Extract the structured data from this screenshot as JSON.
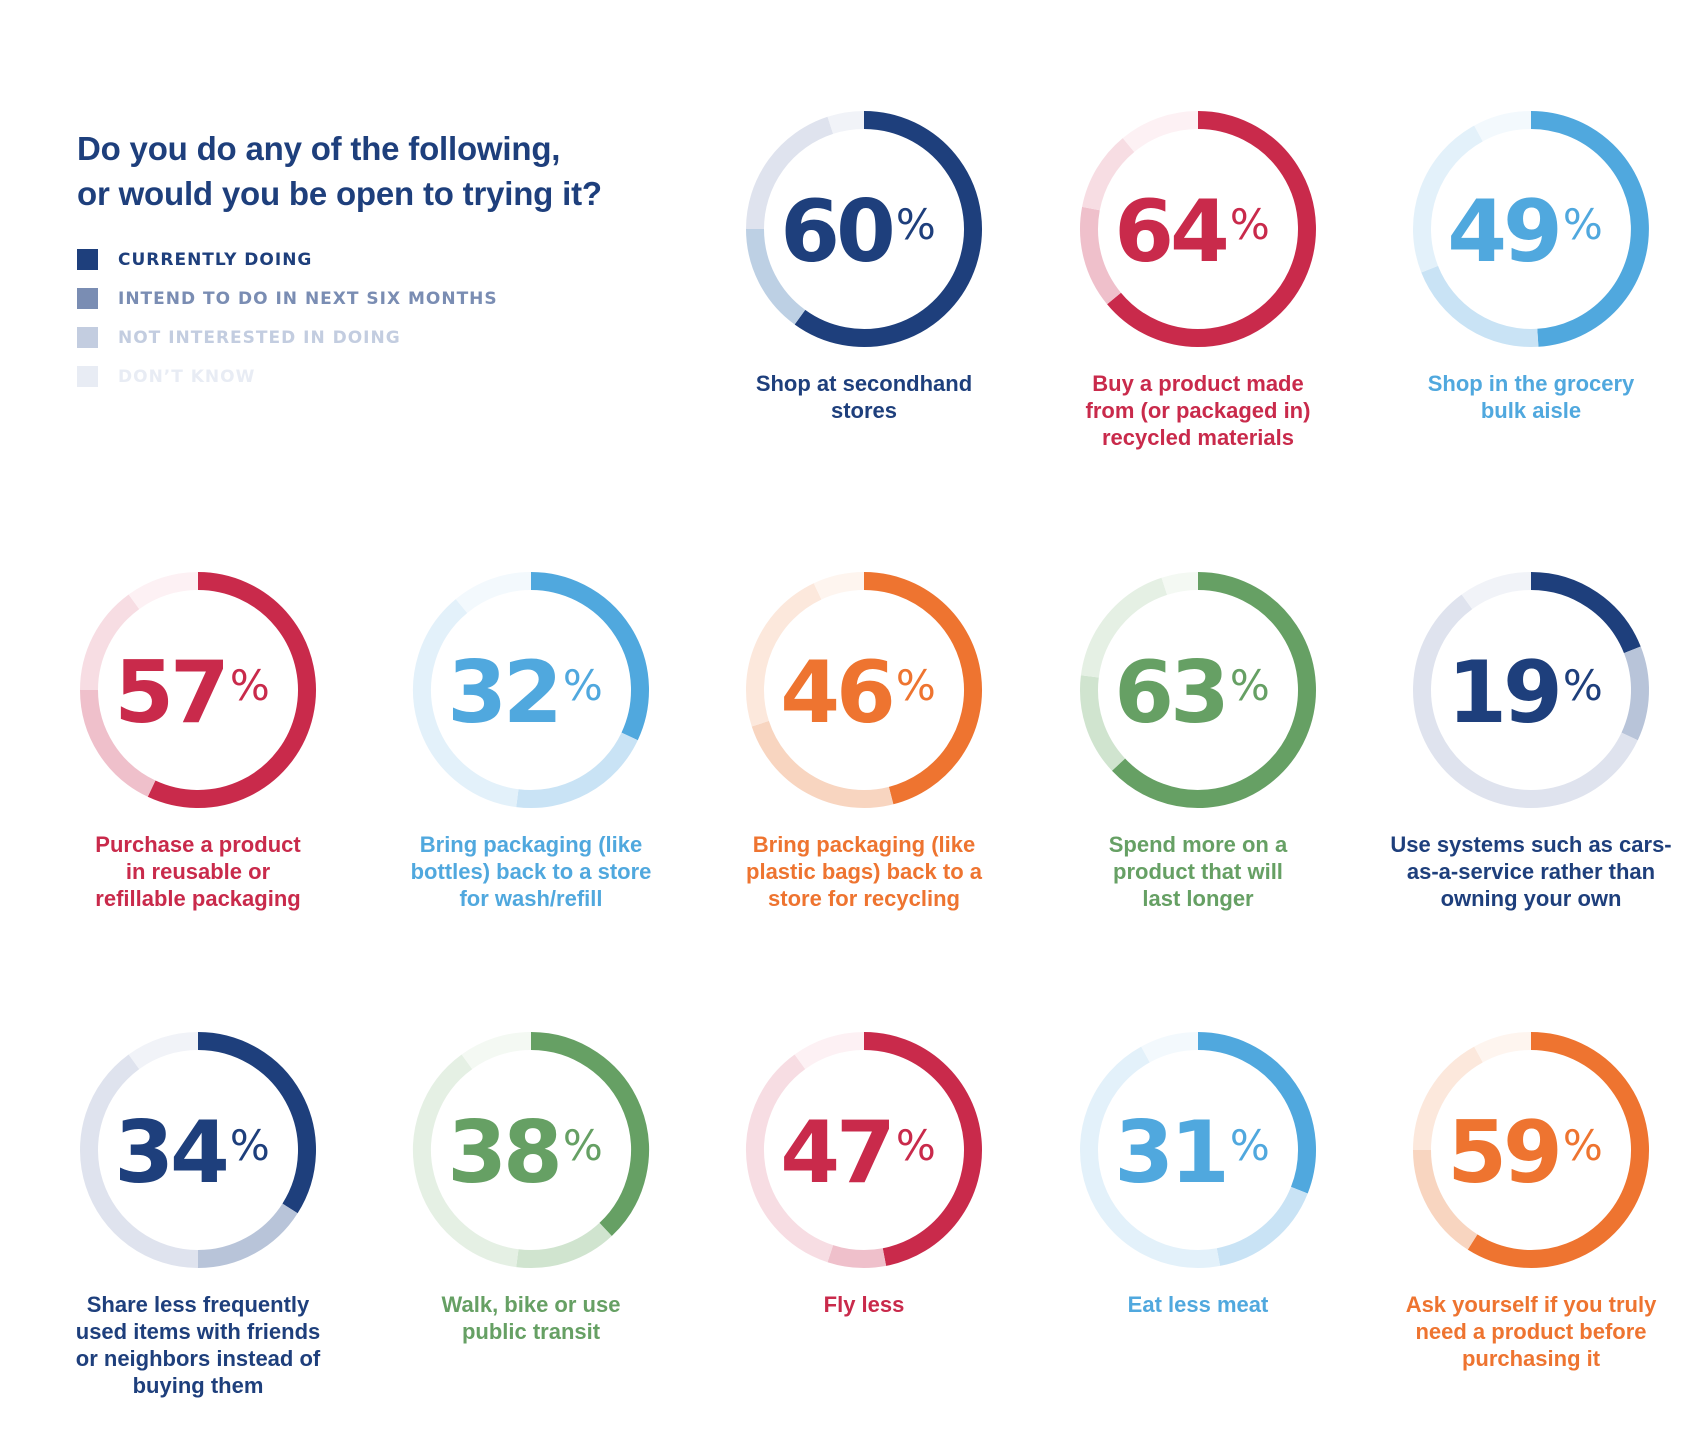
{
  "title_lines": [
    "Do you do any of the following,",
    "or would you be open to trying it?"
  ],
  "legend": [
    {
      "label": "CURRENTLY DOING",
      "color": "#1e3f7c"
    },
    {
      "label": "INTEND TO DO IN NEXT SIX MONTHS",
      "color": "#7a8db3"
    },
    {
      "label": "NOT INTERESTED IN DOING",
      "color": "#c3cde0"
    },
    {
      "label": "DON’T KNOW",
      "color": "#e8ecf4"
    }
  ],
  "chart_data": {
    "type": "pie",
    "subtype": "donut-grid",
    "title": "Do you do any of the following, or would you be open to trying it?",
    "segments": [
      "Currently doing",
      "Intend to do in next six months",
      "Not interested in doing",
      "Don't know"
    ],
    "items": [
      {
        "label": "Shop at secondhand stores",
        "value_label": "60",
        "values": [
          60,
          15,
          20,
          5
        ],
        "color": "#1e3f7c",
        "tints": [
          "#1e3f7c",
          "#bdd0e4",
          "#dfe3ee",
          "#f1f3f8"
        ]
      },
      {
        "label": "Buy a product made from (or packaged in) recycled materials",
        "value_label": "64",
        "values": [
          64,
          14,
          11,
          11
        ],
        "color": "#c92a4b",
        "tints": [
          "#c92a4b",
          "#efc0cb",
          "#f7dde3",
          "#fdf1f4"
        ]
      },
      {
        "label": "Shop in the grocery bulk aisle",
        "value_label": "49",
        "values": [
          49,
          20,
          23,
          8
        ],
        "color": "#50a8de",
        "tints": [
          "#50a8de",
          "#c9e3f5",
          "#e3f1fa",
          "#f3f9fd"
        ]
      },
      {
        "label": "Purchase a product in reusable or refillable packaging",
        "value_label": "57",
        "values": [
          57,
          18,
          15,
          10
        ],
        "color": "#c92a4b",
        "tints": [
          "#c92a4b",
          "#efc0cb",
          "#f7dde3",
          "#fdf1f4"
        ]
      },
      {
        "label": "Bring packaging (like bottles) back to a store for wash/refill",
        "value_label": "32",
        "values": [
          32,
          20,
          37,
          11
        ],
        "color": "#50a8de",
        "tints": [
          "#50a8de",
          "#c9e3f5",
          "#e3f1fa",
          "#f3f9fd"
        ]
      },
      {
        "label": "Bring packaging (like plastic bags) back to a store for recycling",
        "value_label": "46",
        "values": [
          46,
          24,
          23,
          7
        ],
        "color": "#ee7430",
        "tints": [
          "#ee7430",
          "#f8d5c0",
          "#fce8dc",
          "#fef5ef"
        ]
      },
      {
        "label": "Spend more on a product that will last longer",
        "value_label": "63",
        "values": [
          63,
          14,
          18,
          5
        ],
        "color": "#66a064",
        "tints": [
          "#66a064",
          "#d0e4cf",
          "#e5f0e4",
          "#f4f9f3"
        ]
      },
      {
        "label": "Use systems such as cars-as-a-service rather than owning your own",
        "value_label": "19",
        "values": [
          19,
          13,
          58,
          10
        ],
        "color": "#1e3f7c",
        "tints": [
          "#1e3f7c",
          "#b8c4d9",
          "#dfe3ee",
          "#f1f3f8"
        ]
      },
      {
        "label": "Share less frequently used items with friends or neighbors instead of buying them",
        "value_label": "34",
        "values": [
          34,
          16,
          40,
          10
        ],
        "color": "#1e3f7c",
        "tints": [
          "#1e3f7c",
          "#b8c4d9",
          "#dfe3ee",
          "#f1f3f8"
        ]
      },
      {
        "label": "Walk, bike or use public transit",
        "value_label": "38",
        "values": [
          38,
          14,
          38,
          10
        ],
        "color": "#66a064",
        "tints": [
          "#66a064",
          "#d0e4cf",
          "#e5f0e4",
          "#f4f9f3"
        ]
      },
      {
        "label": "Fly less",
        "value_label": "47",
        "values": [
          47,
          8,
          35,
          10
        ],
        "color": "#c92a4b",
        "tints": [
          "#c92a4b",
          "#efc0cb",
          "#f7dde3",
          "#fdf1f4"
        ]
      },
      {
        "label": "Eat less meat",
        "value_label": "31",
        "values": [
          31,
          16,
          45,
          8
        ],
        "color": "#50a8de",
        "tints": [
          "#50a8de",
          "#c9e3f5",
          "#e3f1fa",
          "#f3f9fd"
        ]
      },
      {
        "label": "Ask yourself if you truly need a product before purchasing it",
        "value_label": "59",
        "values": [
          59,
          16,
          17,
          8
        ],
        "color": "#ee7430",
        "tints": [
          "#ee7430",
          "#f8d5c0",
          "#fce8dc",
          "#fef5ef"
        ]
      }
    ],
    "label_lines": [
      [
        "Shop at secondhand",
        "stores"
      ],
      [
        "Buy a product made",
        "from (or packaged in)",
        "recycled materials"
      ],
      [
        "Shop in the grocery",
        "bulk aisle"
      ],
      [
        "Purchase a product",
        "in reusable or",
        "refillable packaging"
      ],
      [
        "Bring packaging (like",
        "bottles) back to a store",
        "for wash/refill"
      ],
      [
        "Bring packaging (like",
        "plastic bags) back to a",
        "store for recycling"
      ],
      [
        "Spend more on a",
        "product that will",
        "last longer"
      ],
      [
        "Use systems such as cars-",
        "as-a-service rather than",
        "owning your own"
      ],
      [
        "Share less frequently",
        "used items with friends",
        "or neighbors instead of",
        "buying them"
      ],
      [
        "Walk, bike or use",
        "public transit"
      ],
      [
        "Fly less"
      ],
      [
        "Eat less meat"
      ],
      [
        "Ask yourself if you truly",
        "need a product before",
        "purchasing it"
      ]
    ],
    "percent_symbol": "%",
    "legend_position": "top-left"
  }
}
